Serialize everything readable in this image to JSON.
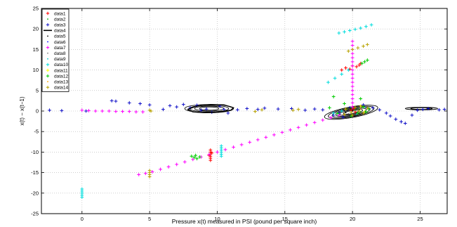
{
  "chart_data": {
    "type": "scatter",
    "title": "",
    "xlabel": "Pressure x(t) measured in PSI (pound per square inch)",
    "ylabel": "x(t) − x(t−1)",
    "xlim": [
      -3,
      27
    ],
    "ylim": [
      -25,
      25
    ],
    "xticks": [
      "0",
      "5",
      "10",
      "15",
      "20",
      "25"
    ],
    "yticks": [
      "25",
      "20",
      "15",
      "10",
      "5",
      "0",
      "-5",
      "-10",
      "-15",
      "-20",
      "-25"
    ],
    "grid": true,
    "legend_position": "top-left",
    "series": [
      {
        "name": "data1",
        "color": "#ff0000",
        "marker": "plus",
        "points": [
          [
            9.5,
            -9.5
          ],
          [
            9.5,
            -10
          ],
          [
            9.5,
            -10.5
          ],
          [
            9.5,
            -11
          ],
          [
            9.5,
            -11.5
          ],
          [
            9.5,
            -12
          ],
          [
            9.6,
            -10.2
          ],
          [
            9.4,
            -10.8
          ],
          [
            20,
            1
          ],
          [
            20.1,
            0.6
          ],
          [
            19.9,
            0.2
          ],
          [
            20.2,
            -0.2
          ],
          [
            19.5,
            10.5
          ],
          [
            20,
            11
          ],
          [
            20.5,
            11.2
          ],
          [
            20.3,
            10.8
          ],
          [
            19.8,
            10.2
          ],
          [
            20.6,
            11.6
          ],
          [
            19.2,
            10.0
          ]
        ]
      },
      {
        "name": "data2",
        "color": "#00aa00",
        "marker": "dot",
        "points": [
          [
            19.6,
            0.5
          ],
          [
            20.2,
            0.2
          ],
          [
            20.6,
            -0.2
          ],
          [
            19.9,
            0.8
          ],
          [
            20.4,
            0.6
          ]
        ]
      },
      {
        "name": "data3",
        "color": "#1010c8",
        "marker": "plus",
        "points": [
          [
            -2.4,
            0.2
          ],
          [
            -1.5,
            0.1
          ],
          [
            0.3,
            0.0
          ],
          [
            2.2,
            2.5
          ],
          [
            2.5,
            2.4
          ],
          [
            3.5,
            2.0
          ],
          [
            4.3,
            1.8
          ],
          [
            5.0,
            1.5
          ],
          [
            6.0,
            0.4
          ],
          [
            6.5,
            1.3
          ],
          [
            7.0,
            1.0
          ],
          [
            7.5,
            1.6
          ],
          [
            8.0,
            0.8
          ],
          [
            8.5,
            1.4
          ],
          [
            8.8,
            0.2
          ],
          [
            9.2,
            0.5
          ],
          [
            9.6,
            -0.3
          ],
          [
            10.2,
            1.2
          ],
          [
            10.5,
            0.4
          ],
          [
            10.8,
            -0.5
          ],
          [
            11.5,
            0.3
          ],
          [
            12.2,
            0.6
          ],
          [
            13.0,
            0.4
          ],
          [
            13.5,
            0.7
          ],
          [
            14.5,
            0.5
          ],
          [
            15.5,
            0.6
          ],
          [
            16.5,
            0.2
          ],
          [
            17.2,
            0.5
          ],
          [
            17.8,
            0.3
          ],
          [
            18.6,
            -1.0
          ],
          [
            19.0,
            -0.5
          ],
          [
            19.3,
            -1.5
          ],
          [
            20.8,
            1.5
          ],
          [
            21.5,
            0.8
          ],
          [
            22.0,
            0.3
          ],
          [
            22.5,
            -0.5
          ],
          [
            22.8,
            -1.2
          ],
          [
            23.2,
            -2.0
          ],
          [
            23.6,
            -2.6
          ],
          [
            23.9,
            -3.0
          ],
          [
            24.4,
            -1.0
          ],
          [
            24.8,
            0.2
          ],
          [
            25.2,
            0.4
          ],
          [
            25.6,
            0.6
          ],
          [
            26.4,
            0.3
          ],
          [
            26.8,
            0.4
          ]
        ]
      },
      {
        "name": "data4",
        "color": "#000000",
        "marker": "line",
        "points": [
          [
            7.8,
            0.4
          ],
          [
            8.5,
            1.2
          ],
          [
            9.5,
            1.6
          ],
          [
            10.5,
            1.5
          ],
          [
            11.2,
            0.8
          ],
          [
            11.0,
            0.2
          ],
          [
            10.0,
            -0.3
          ],
          [
            9.0,
            -0.4
          ],
          [
            8.2,
            -0.2
          ],
          [
            7.8,
            0.4
          ]
        ]
      },
      {
        "name": "data5",
        "color": "#000000",
        "marker": "dot",
        "points": [
          [
            20.0,
            0.0
          ],
          [
            20.5,
            0.3
          ],
          [
            19.5,
            -0.4
          ]
        ]
      },
      {
        "name": "data6",
        "color": "#0000ff",
        "marker": "dot",
        "points": [
          [
            19.8,
            1.0
          ],
          [
            21.0,
            0.8
          ]
        ]
      },
      {
        "name": "data7",
        "color": "#ff00ff",
        "marker": "plus",
        "points": [
          [
            0.0,
            0.2
          ],
          [
            0.5,
            0.1
          ],
          [
            1.0,
            0.0
          ],
          [
            1.5,
            0.0
          ],
          [
            2.0,
            0.0
          ],
          [
            2.5,
            -0.1
          ],
          [
            3.0,
            -0.1
          ],
          [
            3.5,
            -0.1
          ],
          [
            4.0,
            -0.2
          ],
          [
            4.5,
            -0.2
          ],
          [
            4.2,
            -15.5
          ],
          [
            4.7,
            -15.2
          ],
          [
            5.2,
            -14.8
          ],
          [
            5.8,
            -14.2
          ],
          [
            6.4,
            -13.6
          ],
          [
            7.0,
            -13.0
          ],
          [
            7.6,
            -12.4
          ],
          [
            8.2,
            -11.8
          ],
          [
            8.8,
            -11.2
          ],
          [
            9.4,
            -10.6
          ],
          [
            10.0,
            -10.0
          ],
          [
            10.6,
            -9.4
          ],
          [
            11.2,
            -8.8
          ],
          [
            11.8,
            -8.2
          ],
          [
            12.4,
            -7.6
          ],
          [
            13.0,
            -7.0
          ],
          [
            13.6,
            -6.4
          ],
          [
            14.2,
            -5.8
          ],
          [
            14.8,
            -5.2
          ],
          [
            15.4,
            -4.6
          ],
          [
            16.0,
            -4.0
          ],
          [
            16.6,
            -3.4
          ],
          [
            17.2,
            -2.8
          ],
          [
            17.8,
            -2.2
          ],
          [
            18.4,
            -1.6
          ],
          [
            19.0,
            -1.0
          ],
          [
            20.0,
            1.0
          ],
          [
            20.0,
            2.0
          ],
          [
            20.0,
            3.0
          ],
          [
            20.0,
            4.0
          ],
          [
            20.0,
            5.0
          ],
          [
            20.0,
            6.0
          ],
          [
            20.0,
            7.0
          ],
          [
            20.0,
            8.0
          ],
          [
            20.0,
            9.0
          ],
          [
            20.0,
            10.0
          ],
          [
            20.0,
            11.0
          ],
          [
            20.0,
            12.0
          ],
          [
            20.0,
            13.0
          ],
          [
            20.0,
            14.0
          ],
          [
            20.0,
            15.0
          ],
          [
            20.0,
            16.0
          ],
          [
            20.0,
            17.0
          ]
        ]
      },
      {
        "name": "data8",
        "color": "#888888",
        "marker": "dot",
        "points": [
          [
            20.4,
            0.2
          ],
          [
            19.7,
            -0.6
          ]
        ]
      },
      {
        "name": "data9",
        "color": "#00cccc",
        "marker": "dot",
        "points": [
          [
            20.3,
            -0.8
          ],
          [
            20.9,
            0.9
          ]
        ]
      },
      {
        "name": "data10",
        "color": "#00dddd",
        "marker": "plus",
        "points": [
          [
            0.0,
            -19.0
          ],
          [
            0.0,
            -19.5
          ],
          [
            0.0,
            -20.0
          ],
          [
            0.0,
            -20.5
          ],
          [
            0.0,
            -21.0
          ],
          [
            10.3,
            -8.5
          ],
          [
            10.3,
            -9.0
          ],
          [
            10.3,
            -9.5
          ],
          [
            10.3,
            -10.0
          ],
          [
            10.3,
            -10.5
          ],
          [
            10.3,
            -11.0
          ],
          [
            18.2,
            7.0
          ],
          [
            18.7,
            8.0
          ],
          [
            19.2,
            9.0
          ],
          [
            19.7,
            10.0
          ],
          [
            18.6,
            -0.5
          ],
          [
            19.2,
            0.0
          ],
          [
            19.0,
            19.0
          ],
          [
            19.4,
            19.3
          ],
          [
            19.8,
            19.6
          ],
          [
            20.2,
            19.9
          ],
          [
            20.6,
            20.2
          ],
          [
            21.0,
            20.6
          ],
          [
            21.4,
            21.0
          ]
        ]
      },
      {
        "name": "data11",
        "color": "#ffff00",
        "marker": "plus",
        "points": [
          [
            20.6,
            1.2
          ],
          [
            20.9,
            -0.2
          ]
        ]
      },
      {
        "name": "data12",
        "color": "#00cc00",
        "marker": "plus",
        "points": [
          [
            8.1,
            -11.0
          ],
          [
            8.3,
            -11.3
          ],
          [
            8.5,
            -11.6
          ],
          [
            8.7,
            -11.2
          ],
          [
            8.4,
            -10.8
          ],
          [
            18.3,
            0.8
          ],
          [
            18.6,
            3.5
          ],
          [
            18.9,
            -0.6
          ],
          [
            19.4,
            1.8
          ],
          [
            19.9,
            -1.2
          ],
          [
            20.4,
            -0.5
          ],
          [
            20.8,
            1.0
          ],
          [
            21.0,
            -0.2
          ],
          [
            21.2,
            0.5
          ],
          [
            20.6,
            3.0
          ],
          [
            20.9,
            12.0
          ],
          [
            21.1,
            12.4
          ],
          [
            20.7,
            11.6
          ]
        ]
      },
      {
        "name": "data13",
        "color": "#ffa500",
        "marker": "dot",
        "points": [
          [
            19.5,
            0.4
          ],
          [
            20.6,
            0.5
          ]
        ]
      },
      {
        "name": "data14",
        "color": "#b8a200",
        "marker": "plus",
        "points": [
          [
            5.0,
            -14.5
          ],
          [
            5.0,
            -15.0
          ],
          [
            5.0,
            -15.5
          ],
          [
            5.0,
            -16.0
          ],
          [
            5.0,
            0.2
          ],
          [
            5.1,
            0.0
          ],
          [
            12.8,
            -0.1
          ],
          [
            13.3,
            0.3
          ],
          [
            15.6,
            0.2
          ],
          [
            16.0,
            0.4
          ],
          [
            19.5,
            0.5
          ],
          [
            19.9,
            -0.3
          ],
          [
            20.2,
            0.9
          ],
          [
            20.5,
            0.0
          ],
          [
            20.8,
            -0.5
          ],
          [
            20.0,
            -1.0
          ],
          [
            19.4,
            -0.8
          ],
          [
            21.1,
            0.7
          ],
          [
            20.0,
            15.0
          ],
          [
            20.4,
            15.4
          ],
          [
            20.8,
            15.8
          ],
          [
            21.1,
            16.2
          ],
          [
            19.7,
            14.6
          ]
        ]
      }
    ],
    "ellipses": [
      {
        "cx": 9.4,
        "cy": 0.6,
        "rx": 1.8,
        "ry": 1.0,
        "angle": 0,
        "rings": 4
      },
      {
        "cx": 19.9,
        "cy": -0.3,
        "rx": 2.0,
        "ry": 1.3,
        "angle": -10,
        "rings": 6
      },
      {
        "cx": 25.1,
        "cy": 0.6,
        "rx": 1.2,
        "ry": 0.3,
        "angle": 0,
        "rings": 2
      }
    ]
  }
}
